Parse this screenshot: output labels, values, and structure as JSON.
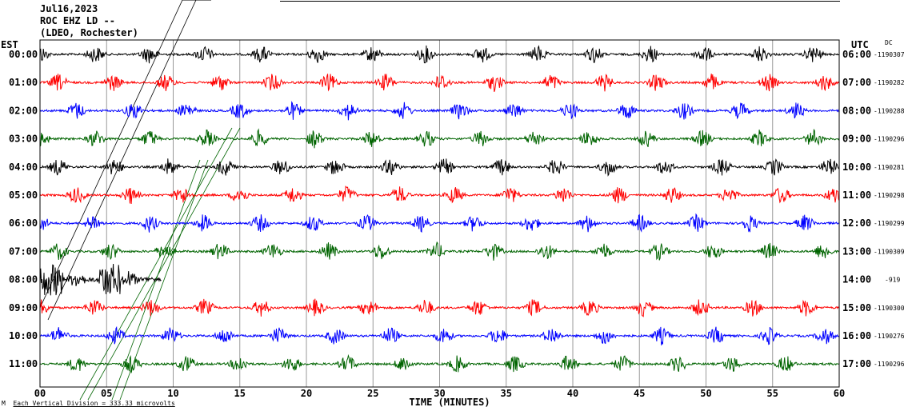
{
  "header": {
    "date": "Jul16,2023",
    "station": "ROC EHZ LD --",
    "network": "(LDEO, Rochester)"
  },
  "footer": {
    "mark": "M",
    "scale_note": "Each Vertical Division = 333.33 microvolts"
  },
  "chart_data": {
    "type": "line",
    "title": "Jul16,2023 ROC EHZ LD -- (LDEO, Rochester)",
    "xlabel": "TIME (MINUTES)",
    "xlim": [
      0,
      60
    ],
    "x_ticks": [
      "00",
      "05",
      "10",
      "15",
      "20",
      "25",
      "30",
      "35",
      "40",
      "45",
      "50",
      "55",
      "60"
    ],
    "left_axis_label": "EST",
    "right_axis_label": "UTC",
    "right_corner_label": "DC",
    "grid": "vertical lines every 5 minutes",
    "trace_colors": [
      "#000000",
      "#ff0000",
      "#0000ff",
      "#006400"
    ],
    "rows": [
      {
        "est": "00:00",
        "utc": "06:00",
        "dc": "-1190307",
        "color": "#000000"
      },
      {
        "est": "01:00",
        "utc": "07:00",
        "dc": "-1190282",
        "color": "#ff0000"
      },
      {
        "est": "02:00",
        "utc": "08:00",
        "dc": "-1190288",
        "color": "#0000ff"
      },
      {
        "est": "03:00",
        "utc": "09:00",
        "dc": "-1190296",
        "color": "#006400"
      },
      {
        "est": "04:00",
        "utc": "10:00",
        "dc": "-1190281",
        "color": "#000000"
      },
      {
        "est": "05:00",
        "utc": "11:00",
        "dc": "-1190298",
        "color": "#ff0000"
      },
      {
        "est": "06:00",
        "utc": "12:00",
        "dc": "-1190299",
        "color": "#0000ff"
      },
      {
        "est": "07:00",
        "utc": "13:00",
        "dc": "-1190309",
        "color": "#006400"
      },
      {
        "est": "08:00",
        "utc": "14:00",
        "dc": "-919",
        "color": "#000000"
      },
      {
        "est": "09:00",
        "utc": "15:00",
        "dc": "-1190300",
        "color": "#ff0000"
      },
      {
        "est": "10:00",
        "utc": "16:00",
        "dc": "-1190276",
        "color": "#0000ff"
      },
      {
        "est": "11:00",
        "utc": "17:00",
        "dc": "-1190296",
        "color": "#006400"
      }
    ]
  }
}
